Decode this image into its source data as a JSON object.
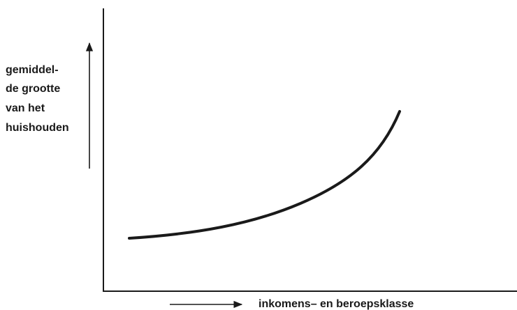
{
  "axes": {
    "y_label_lines": [
      "gemiddel-",
      "de grootte",
      "van het",
      "huishouden"
    ],
    "x_label": "inkomens– en beroepsklasse"
  }
}
